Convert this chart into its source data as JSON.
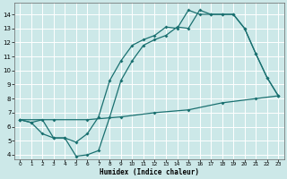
{
  "xlabel": "Humidex (Indice chaleur)",
  "bg_color": "#cce8e8",
  "grid_color": "#ffffff",
  "line_color": "#1a7070",
  "xlim": [
    -0.5,
    23.5
  ],
  "ylim": [
    3.7,
    14.8
  ],
  "xticks": [
    0,
    1,
    2,
    3,
    4,
    5,
    6,
    7,
    8,
    9,
    10,
    11,
    12,
    13,
    14,
    15,
    16,
    17,
    18,
    19,
    20,
    21,
    22,
    23
  ],
  "yticks": [
    4,
    5,
    6,
    7,
    8,
    9,
    10,
    11,
    12,
    13,
    14
  ],
  "line1_x": [
    0,
    1,
    2,
    3,
    4,
    5,
    6,
    7,
    8,
    9,
    10,
    11,
    12,
    13,
    14,
    15,
    16,
    17,
    18,
    19,
    20,
    21,
    22,
    23
  ],
  "line1_y": [
    6.5,
    6.3,
    6.5,
    5.2,
    5.2,
    4.9,
    5.5,
    6.7,
    9.3,
    10.7,
    11.8,
    12.2,
    12.5,
    13.1,
    13.0,
    14.3,
    14.0,
    14.0,
    14.0,
    14.0,
    13.0,
    11.2,
    9.5,
    8.2
  ],
  "line2_x": [
    0,
    1,
    2,
    3,
    4,
    5,
    6,
    7,
    8,
    9,
    10,
    11,
    12,
    13,
    14,
    15,
    16,
    17,
    18,
    19,
    20,
    21,
    22,
    23
  ],
  "line2_y": [
    6.5,
    6.3,
    5.5,
    5.2,
    5.2,
    3.9,
    4.0,
    4.3,
    6.7,
    9.3,
    10.7,
    11.8,
    12.2,
    12.5,
    13.1,
    13.0,
    14.3,
    14.0,
    14.0,
    14.0,
    13.0,
    11.2,
    9.5,
    8.2
  ],
  "line3_x": [
    0,
    3,
    6,
    9,
    12,
    15,
    18,
    21,
    23
  ],
  "line3_y": [
    6.5,
    6.5,
    6.5,
    6.7,
    7.0,
    7.2,
    7.7,
    8.0,
    8.2
  ]
}
